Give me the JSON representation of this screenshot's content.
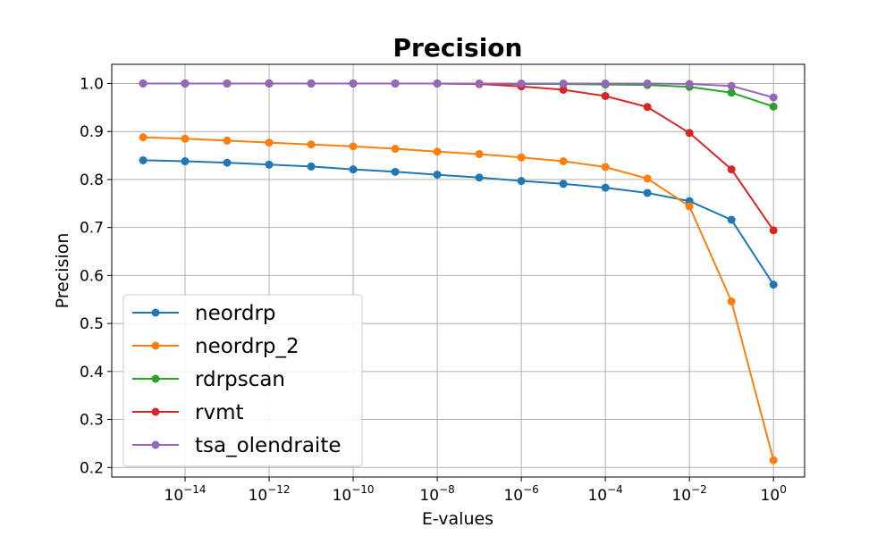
{
  "chart_data": {
    "type": "line",
    "title": "Precision",
    "xlabel": "E-values",
    "ylabel": "Precision",
    "x_scale": "log",
    "x": [
      1e-15,
      1e-14,
      1e-13,
      1e-12,
      1e-11,
      1e-10,
      1e-09,
      1e-08,
      1e-07,
      1e-06,
      1e-05,
      0.0001,
      0.001,
      0.01,
      0.1,
      1
    ],
    "x_ticks": [
      {
        "base": "10",
        "exp": "−14",
        "value": 1e-14
      },
      {
        "base": "10",
        "exp": "−12",
        "value": 1e-12
      },
      {
        "base": "10",
        "exp": "−10",
        "value": 1e-10
      },
      {
        "base": "10",
        "exp": "−8",
        "value": 1e-08
      },
      {
        "base": "10",
        "exp": "−6",
        "value": 1e-06
      },
      {
        "base": "10",
        "exp": "−4",
        "value": 0.0001
      },
      {
        "base": "10",
        "exp": "−2",
        "value": 0.01
      },
      {
        "base": "10",
        "exp": "0",
        "value": 1
      }
    ],
    "y_ticks": [
      "0.2",
      "0.3",
      "0.4",
      "0.5",
      "0.6",
      "0.7",
      "0.8",
      "0.9",
      "1.0"
    ],
    "xlim": [
      1.8e-16,
      5.5
    ],
    "ylim": [
      0.18,
      1.04
    ],
    "grid": true,
    "legend_position": "lower-left",
    "series": [
      {
        "name": "neordrp",
        "color": "#1f77b4",
        "values": [
          0.84,
          0.838,
          0.835,
          0.831,
          0.827,
          0.821,
          0.816,
          0.81,
          0.804,
          0.797,
          0.791,
          0.783,
          0.772,
          0.755,
          0.716,
          0.581
        ]
      },
      {
        "name": "neordrp_2",
        "color": "#ff7f0e",
        "values": [
          0.888,
          0.885,
          0.881,
          0.877,
          0.873,
          0.869,
          0.864,
          0.858,
          0.853,
          0.846,
          0.838,
          0.826,
          0.802,
          0.744,
          0.546,
          0.215
        ]
      },
      {
        "name": "rdrpscan",
        "color": "#2ca02c",
        "values": [
          1.0,
          1.0,
          1.0,
          1.0,
          1.0,
          1.0,
          1.0,
          1.0,
          0.999,
          0.999,
          0.999,
          0.998,
          0.997,
          0.993,
          0.981,
          0.952
        ]
      },
      {
        "name": "rvmt",
        "color": "#d62728",
        "values": [
          1.0,
          1.0,
          1.0,
          1.0,
          1.0,
          1.0,
          1.0,
          1.0,
          0.999,
          0.994,
          0.987,
          0.974,
          0.951,
          0.897,
          0.821,
          0.694
        ]
      },
      {
        "name": "tsa_olendraite",
        "color": "#9467bd",
        "values": [
          1.0,
          1.0,
          1.0,
          1.0,
          1.0,
          1.0,
          1.0,
          1.0,
          1.0,
          1.0,
          1.0,
          1.0,
          1.0,
          0.999,
          0.995,
          0.971
        ]
      }
    ]
  }
}
